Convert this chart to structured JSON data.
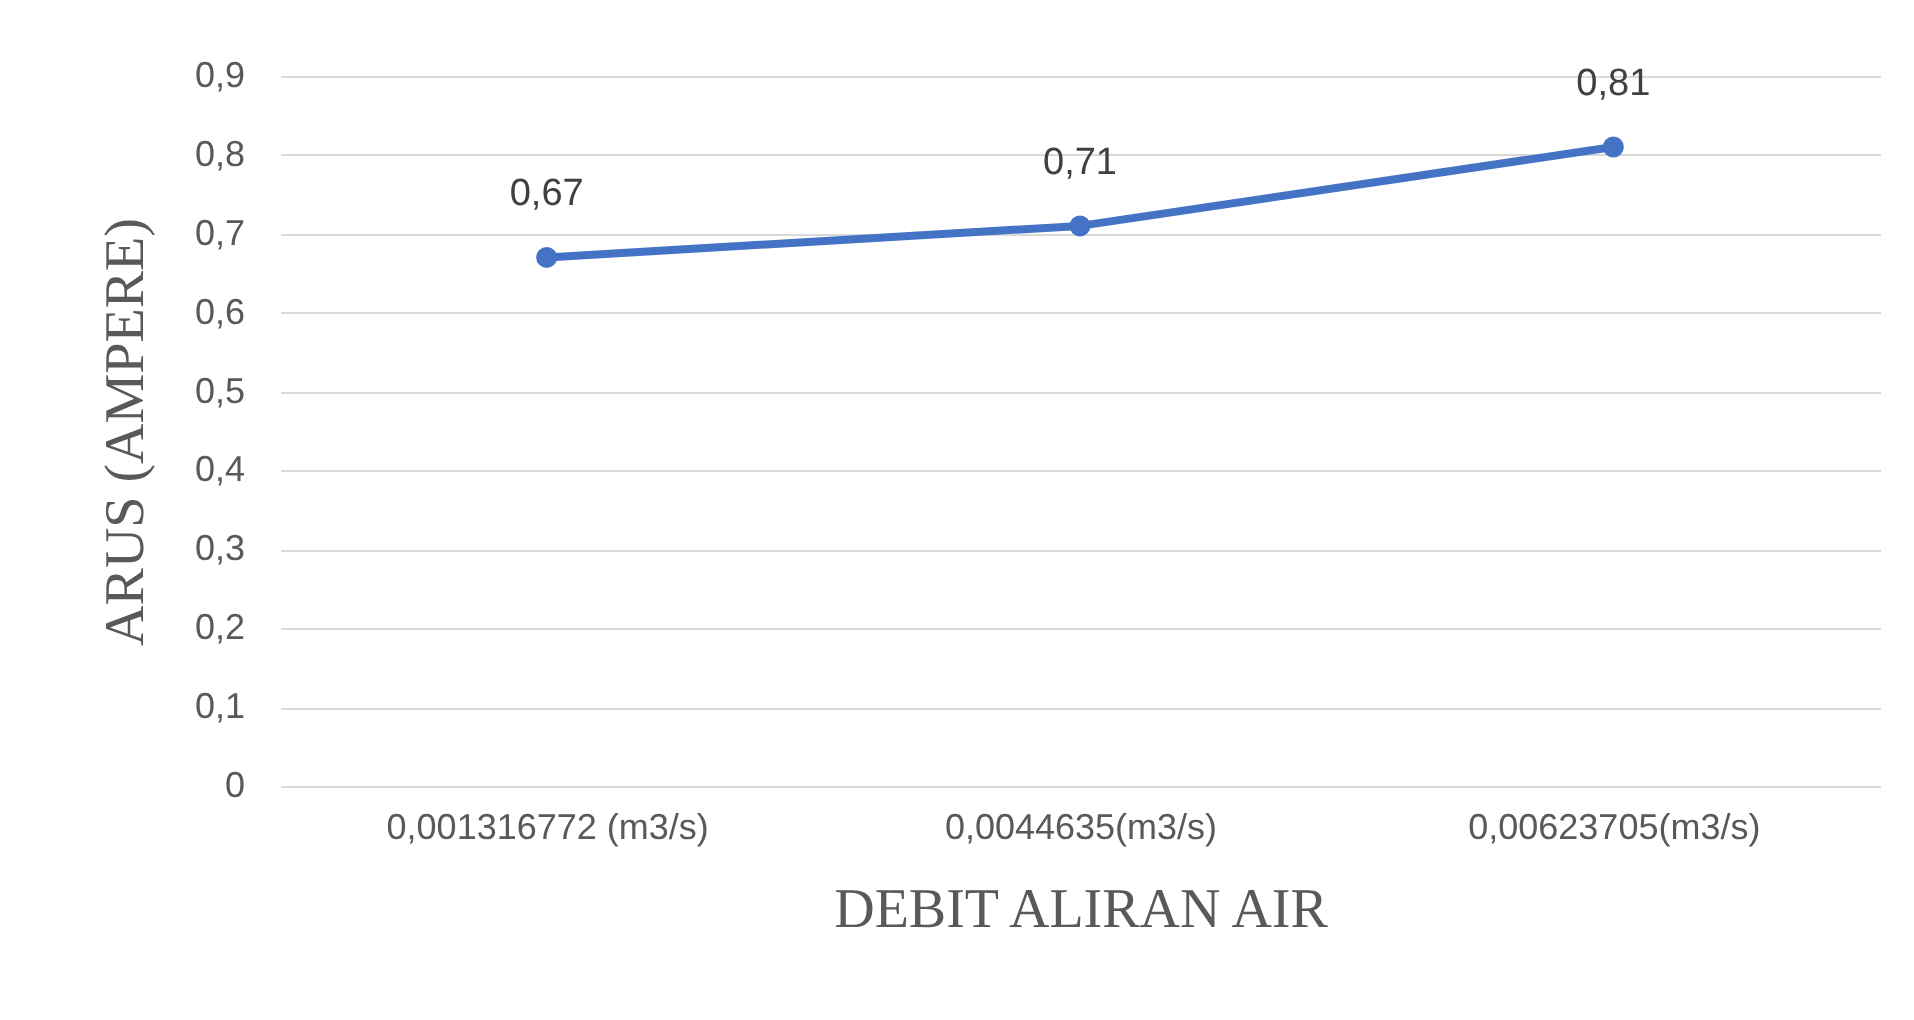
{
  "chart_data": {
    "type": "line",
    "xlabel": "DEBIT ALIRAN AIR",
    "ylabel": "ARUS (AMPERE)",
    "categories": [
      "0,001316772 (m3/s)",
      "0,0044635(m3/s)",
      "0,00623705(m3/s)"
    ],
    "series": [
      {
        "color": "#4472c4",
        "values": [
          0.67,
          0.71,
          0.81
        ],
        "value_labels": [
          "0,67",
          "0,71",
          "0,81"
        ]
      }
    ],
    "ylim": [
      0,
      0.9
    ],
    "yticks": [
      {
        "value": 0,
        "label": "0"
      },
      {
        "value": 0.1,
        "label": "0,1"
      },
      {
        "value": 0.2,
        "label": "0,2"
      },
      {
        "value": 0.3,
        "label": "0,3"
      },
      {
        "value": 0.4,
        "label": "0,4"
      },
      {
        "value": 0.5,
        "label": "0,5"
      },
      {
        "value": 0.6,
        "label": "0,6"
      },
      {
        "value": 0.7,
        "label": "0,7"
      },
      {
        "value": 0.8,
        "label": "0,8"
      },
      {
        "value": 0.9,
        "label": "0,9"
      }
    ],
    "grid": "y",
    "marker": "circle"
  }
}
